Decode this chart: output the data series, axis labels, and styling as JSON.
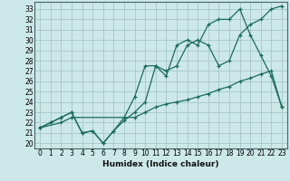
{
  "xlabel": "Humidex (Indice chaleur)",
  "ylabel": "",
  "xlim": [
    -0.5,
    23.5
  ],
  "ylim": [
    19.5,
    33.7
  ],
  "xticks": [
    0,
    1,
    2,
    3,
    4,
    5,
    6,
    7,
    8,
    9,
    10,
    11,
    12,
    13,
    14,
    15,
    16,
    17,
    18,
    19,
    20,
    21,
    22,
    23
  ],
  "yticks": [
    20,
    21,
    22,
    23,
    24,
    25,
    26,
    27,
    28,
    29,
    30,
    31,
    32,
    33
  ],
  "bg_color": "#cde8e8",
  "grid_color": "#aacccc",
  "line_color": "#1a6b5a",
  "line1_x": [
    0,
    1,
    2,
    3,
    4,
    5,
    6,
    7,
    8,
    9,
    10,
    11,
    12,
    13,
    14,
    15,
    16,
    17,
    18,
    19,
    20,
    21,
    22,
    23
  ],
  "line1_y": [
    21.5,
    22.0,
    22.5,
    23.0,
    21.0,
    21.2,
    20.0,
    21.2,
    22.2,
    23.0,
    24.0,
    27.5,
    27.0,
    27.5,
    29.5,
    30.0,
    29.5,
    27.5,
    28.0,
    30.5,
    31.5,
    32.0,
    33.0,
    33.3
  ],
  "line2_x": [
    0,
    1,
    2,
    3,
    4,
    5,
    6,
    7,
    8,
    9,
    10,
    11,
    12,
    13,
    14,
    15,
    16,
    17,
    18,
    19,
    20,
    21,
    22,
    23
  ],
  "line2_y": [
    21.5,
    22.0,
    22.5,
    23.0,
    21.0,
    21.2,
    20.0,
    21.2,
    22.5,
    24.5,
    27.5,
    27.5,
    26.5,
    29.5,
    30.0,
    29.5,
    31.5,
    32.0,
    32.0,
    33.0,
    30.5,
    28.5,
    26.5,
    23.5
  ],
  "line3_x": [
    0,
    2,
    3,
    9,
    10,
    11,
    12,
    13,
    14,
    15,
    16,
    17,
    18,
    19,
    20,
    21,
    22,
    23
  ],
  "line3_y": [
    21.5,
    22.0,
    22.5,
    22.5,
    23.0,
    23.5,
    23.8,
    24.0,
    24.2,
    24.5,
    24.8,
    25.2,
    25.5,
    26.0,
    26.3,
    26.7,
    27.0,
    23.5
  ]
}
